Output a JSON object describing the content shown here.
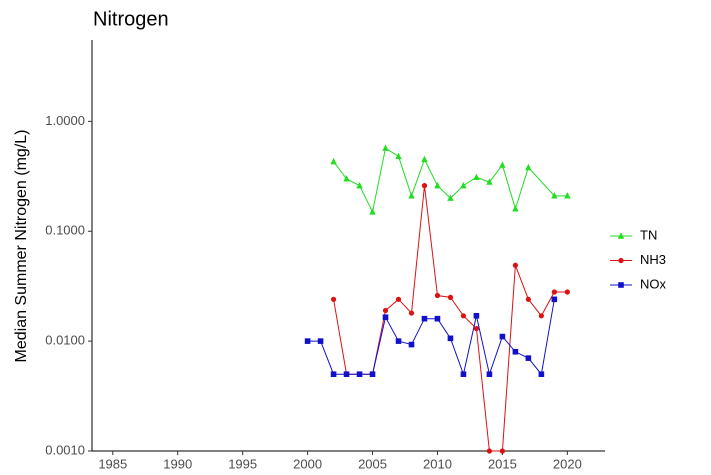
{
  "chart_data": {
    "type": "line",
    "title": "Nitrogen",
    "y_label": "Median Summer Nitrogen (mg/L)",
    "log_y": true,
    "legend": "right",
    "xlim": [
      1983.4,
      2022.9
    ],
    "xticks": [
      1985,
      1990,
      1995,
      2000,
      2005,
      2010,
      2015,
      2020
    ],
    "ylim": [
      0.001,
      5.5
    ],
    "yticks": [
      {
        "value": 0.001,
        "label": "0.0010"
      },
      {
        "value": 0.01,
        "label": "0.0100"
      },
      {
        "value": 0.1,
        "label": "0.1000"
      },
      {
        "value": 1,
        "label": "1.0000"
      }
    ],
    "series": [
      {
        "name": "TN",
        "color": "#22dd22",
        "marker": "triangle",
        "x": [
          2002,
          2003,
          2004,
          2005,
          2006,
          2007,
          2008,
          2009,
          2010,
          2011,
          2012,
          2013,
          2014,
          2015,
          2016,
          2017,
          2019,
          2020
        ],
        "values": [
          0.43,
          0.3,
          0.26,
          0.15,
          0.57,
          0.48,
          0.21,
          0.45,
          0.26,
          0.2,
          0.26,
          0.31,
          0.28,
          0.4,
          0.16,
          0.38,
          0.21,
          0.21
        ]
      },
      {
        "name": "NH3",
        "color": "#dd1111",
        "marker": "circle",
        "x": [
          2002,
          2003,
          2004,
          2005,
          2006,
          2007,
          2008,
          2009,
          2010,
          2011,
          2012,
          2013,
          2014,
          2015,
          2016,
          2017,
          2018,
          2019,
          2020
        ],
        "values": [
          0.024,
          0.005,
          0.005,
          0.005,
          0.019,
          0.024,
          0.018,
          0.26,
          0.026,
          0.025,
          0.017,
          0.013,
          0.001,
          0.001,
          0.049,
          0.024,
          0.017,
          0.028,
          0.028
        ]
      },
      {
        "name": "NOx",
        "color": "#1111cc",
        "marker": "square",
        "x": [
          2000,
          2001,
          2002,
          2003,
          2004,
          2005,
          2006,
          2007,
          2008,
          2009,
          2010,
          2011,
          2012,
          2013,
          2014,
          2015,
          2016,
          2017,
          2018,
          2019
        ],
        "values": [
          0.01,
          0.01,
          0.005,
          0.005,
          0.005,
          0.005,
          0.0165,
          0.01,
          0.0093,
          0.016,
          0.016,
          0.0106,
          0.005,
          0.017,
          0.005,
          0.011,
          0.008,
          0.007,
          0.005,
          0.024
        ]
      }
    ]
  }
}
